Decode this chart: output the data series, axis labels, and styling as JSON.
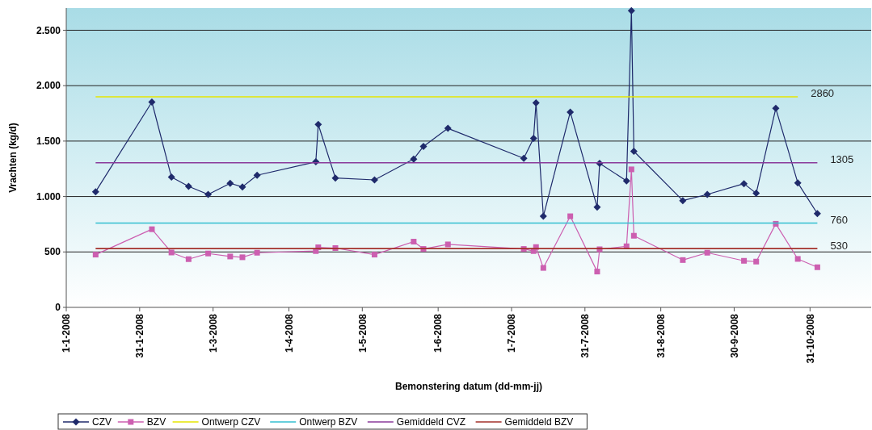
{
  "chart_data": {
    "type": "line",
    "xlabel": "Bemonstering datum (dd-mm-jj)",
    "ylabel": "Vrachten (kg/d)",
    "xlim": [
      "2008-01-01",
      "2008-11-25"
    ],
    "xticks": [
      {
        "value": "2008-01-01",
        "label": "1-1-2008"
      },
      {
        "value": "2008-01-31",
        "label": "31-1-2008"
      },
      {
        "value": "2008-03-01",
        "label": "1-3-2008"
      },
      {
        "value": "2008-04-01",
        "label": "1-4-2008"
      },
      {
        "value": "2008-05-01",
        "label": "1-5-2008"
      },
      {
        "value": "2008-06-01",
        "label": "1-6-2008"
      },
      {
        "value": "2008-07-01",
        "label": "1-7-2008"
      },
      {
        "value": "2008-07-31",
        "label": "31-7-2008"
      },
      {
        "value": "2008-08-31",
        "label": "31-8-2008"
      },
      {
        "value": "2008-09-30",
        "label": "30-9-2008"
      },
      {
        "value": "2008-10-31",
        "label": "31-10-2008"
      }
    ],
    "ylim": [
      0,
      2700
    ],
    "yticks": [
      0,
      500,
      {
        "value": 1000,
        "label": "1.000"
      },
      {
        "value": 1500,
        "label": "1.500"
      },
      {
        "value": 2000,
        "label": "2.000"
      },
      {
        "value": 2500,
        "label": "2.500"
      }
    ],
    "grid": "y",
    "legend": "bottom",
    "x": [
      "2008-01-13",
      "2008-02-05",
      "2008-02-13",
      "2008-02-20",
      "2008-02-28",
      "2008-03-08",
      "2008-03-13",
      "2008-03-19",
      "2008-04-12",
      "2008-04-13",
      "2008-04-20",
      "2008-05-06",
      "2008-05-22",
      "2008-05-26",
      "2008-06-05",
      "2008-07-06",
      "2008-07-10",
      "2008-07-11",
      "2008-07-14",
      "2008-07-25",
      "2008-08-05",
      "2008-08-06",
      "2008-08-17",
      "2008-08-19",
      "2008-08-20",
      "2008-09-09",
      "2008-09-19",
      "2008-10-04",
      "2008-10-09",
      "2008-10-17",
      "2008-10-26",
      "2008-11-03"
    ],
    "series": [
      {
        "name": "CZV",
        "color": "#1f2a6b",
        "marker": "diamond",
        "values": [
          1043,
          1852,
          1175,
          1092,
          1019,
          1119,
          1087,
          1192,
          1313,
          1650,
          1167,
          1150,
          1338,
          1452,
          1615,
          1345,
          1525,
          1844,
          822,
          1762,
          904,
          1299,
          1141,
          2677,
          1408,
          963,
          1019,
          1116,
          1029,
          1795,
          1123,
          846
        ]
      },
      {
        "name": "BZV",
        "color": "#cc5fb0",
        "marker": "square",
        "values": [
          476,
          705,
          495,
          435,
          486,
          459,
          452,
          493,
          508,
          542,
          535,
          476,
          593,
          527,
          568,
          527,
          508,
          544,
          356,
          822,
          323,
          524,
          551,
          1245,
          646,
          427,
          493,
          420,
          413,
          754,
          437,
          362
        ]
      },
      {
        "name": "Ontwerp CZV",
        "color": "#e6e600",
        "marker": "none",
        "x": [
          "2008-01-13",
          "2008-10-26"
        ],
        "values": [
          1900,
          1900
        ]
      },
      {
        "name": "Ontwerp BZV",
        "color": "#33bfd0",
        "marker": "none",
        "x": [
          "2008-01-13",
          "2008-11-03"
        ],
        "values": [
          760,
          760
        ]
      },
      {
        "name": "Gemiddeld CVZ",
        "color": "#8a3a9a",
        "marker": "none",
        "x": [
          "2008-01-13",
          "2008-11-03"
        ],
        "values": [
          1305,
          1305
        ]
      },
      {
        "name": "Gemiddeld BZV",
        "color": "#a3302a",
        "marker": "none",
        "x": [
          "2008-01-13",
          "2008-11-03"
        ],
        "values": [
          530,
          530
        ]
      }
    ],
    "annotations": [
      {
        "text": "2860",
        "x": "2008-10-26",
        "y": 1900
      },
      {
        "text": "1305",
        "x": "2008-11-03",
        "y": 1305
      },
      {
        "text": "760",
        "x": "2008-11-03",
        "y": 760
      },
      {
        "text": "530",
        "x": "2008-11-03",
        "y": 530
      }
    ]
  }
}
